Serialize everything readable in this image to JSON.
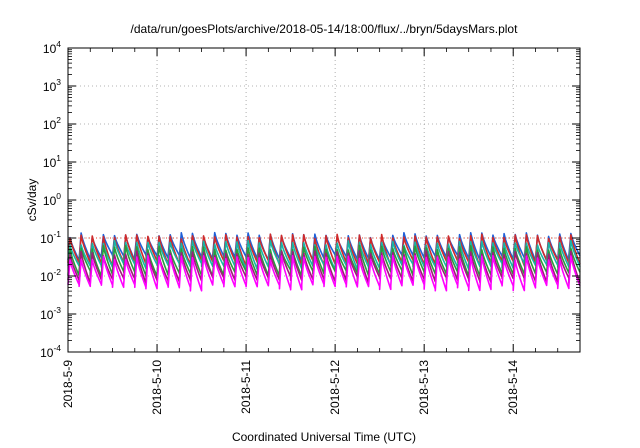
{
  "chart_data": {
    "type": "line",
    "title": "/data/run/goesPlots/archive/2018-05-14/18:00/flux/../bryn/5daysMars.plot",
    "xlabel": "Coordinated Universal Time (UTC)",
    "ylabel": "cSv/day",
    "yscale": "log",
    "ylim": [
      0.0001,
      10000
    ],
    "y_ticks": [
      {
        "base": "10",
        "exp": "-4",
        "value": 0.0001
      },
      {
        "base": "10",
        "exp": "-3",
        "value": 0.001
      },
      {
        "base": "10",
        "exp": "-2",
        "value": 0.01
      },
      {
        "base": "10",
        "exp": "-1",
        "value": 0.1
      },
      {
        "base": "10",
        "exp": "0",
        "value": 1
      },
      {
        "base": "10",
        "exp": "1",
        "value": 10
      },
      {
        "base": "10",
        "exp": "2",
        "value": 100
      },
      {
        "base": "10",
        "exp": "3",
        "value": 1000
      },
      {
        "base": "10",
        "exp": "4",
        "value": 10000
      }
    ],
    "xlim": [
      "2018-05-09T00:00",
      "2018-05-14T18:00"
    ],
    "x_ticks": [
      "2018-5-9",
      "2018-5-10",
      "2018-5-11",
      "2018-5-12",
      "2018-5-13",
      "2018-5-14"
    ],
    "grid": true,
    "reference_line": {
      "value": 0.1,
      "style": "dotted",
      "color": "#e8402a"
    },
    "cycle_period_hours": 3,
    "series": [
      {
        "color": "#2060d8",
        "peak": 0.12,
        "trough": 0.03
      },
      {
        "color": "#d02a2a",
        "peak": 0.11,
        "trough": 0.022
      },
      {
        "color": "#18b4a8",
        "peak": 0.075,
        "trough": 0.018
      },
      {
        "color": "#2a9d3a",
        "peak": 0.055,
        "trough": 0.012
      },
      {
        "color": "#a01a7a",
        "peak": 0.04,
        "trough": 0.008
      },
      {
        "color": "#ff00ff",
        "peak": 0.03,
        "trough": 0.005
      }
    ]
  }
}
